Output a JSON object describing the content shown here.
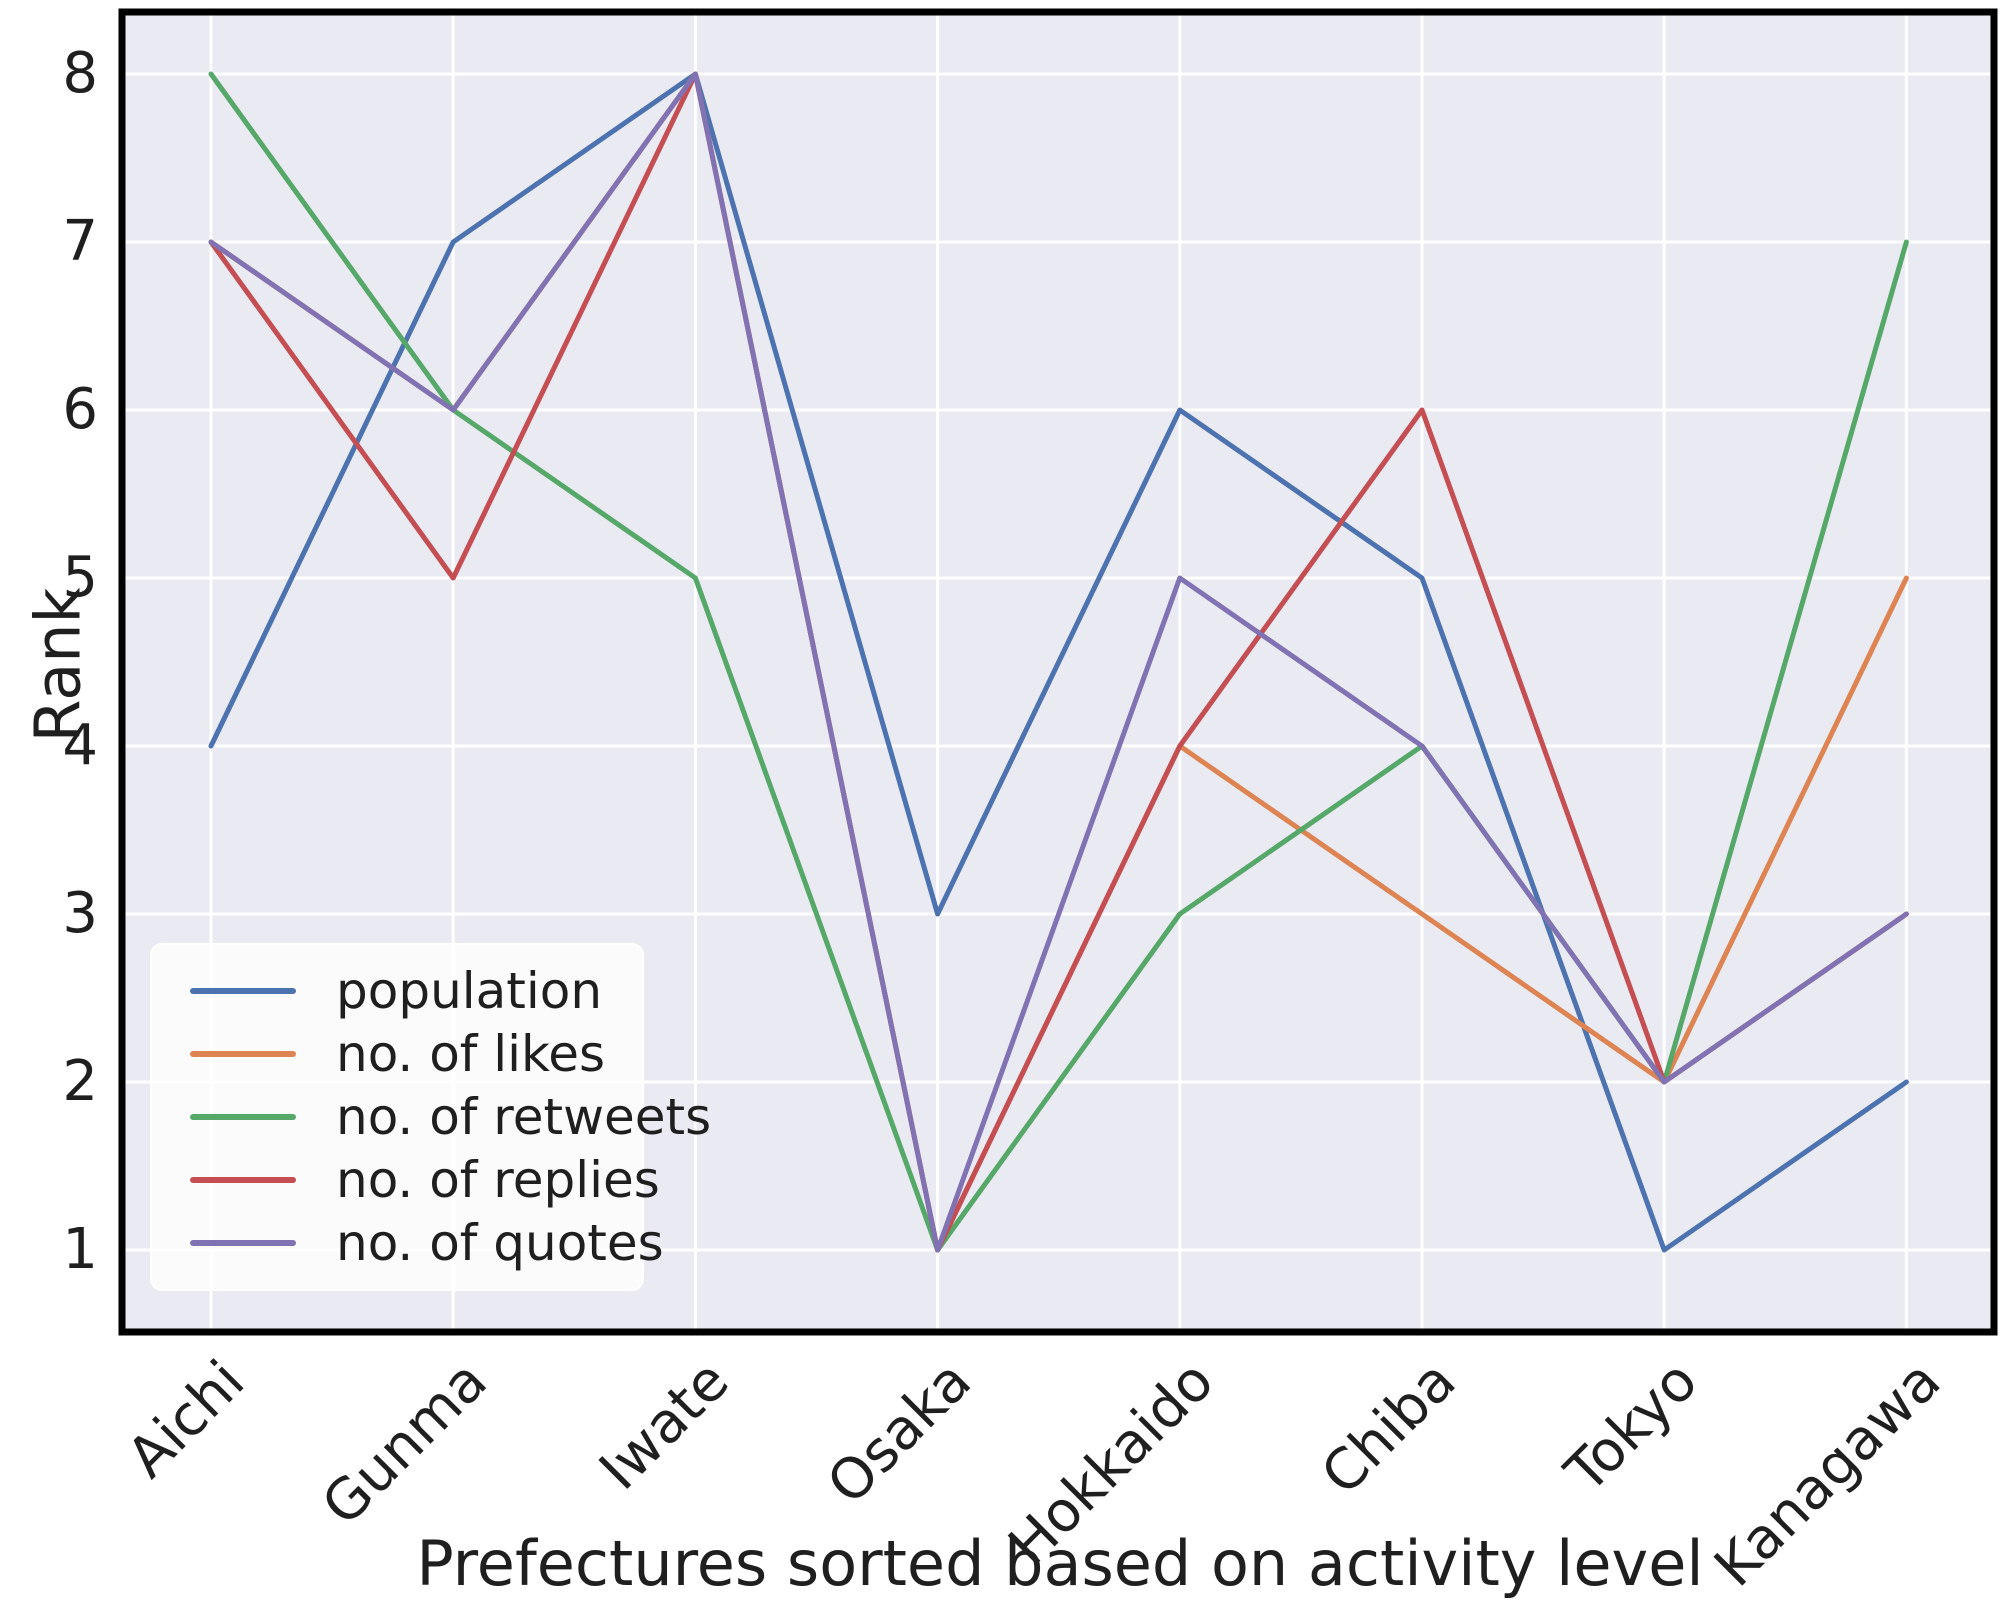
{
  "figure": {
    "background": "#ffffff"
  },
  "chart_data": {
    "type": "line",
    "title": "",
    "xlabel": "Prefectures sorted based on activity level",
    "ylabel": "Rank",
    "categories": [
      "Aichi",
      "Gunma",
      "Iwate",
      "Osaka",
      "Hokkaido",
      "Chiba",
      "Tokyo",
      "Kanagawa"
    ],
    "series": [
      {
        "name": "population",
        "color": "#4c72b0",
        "values": [
          4,
          7,
          8,
          3,
          6,
          5,
          1,
          2
        ]
      },
      {
        "name": "no. of likes",
        "color": "#dd8452",
        "values": [
          7,
          6,
          8,
          1,
          4,
          3,
          2,
          5
        ]
      },
      {
        "name": "no. of retweets",
        "color": "#55a868",
        "values": [
          8,
          6,
          5,
          1,
          3,
          4,
          2,
          7
        ]
      },
      {
        "name": "no. of replies",
        "color": "#c44e52",
        "values": [
          7,
          5,
          8,
          1,
          4,
          6,
          2,
          3
        ]
      },
      {
        "name": "no. of quotes",
        "color": "#8172b3",
        "values": [
          7,
          6,
          8,
          1,
          5,
          4,
          2,
          3
        ]
      }
    ],
    "y_ticks": [
      1,
      2,
      3,
      4,
      5,
      6,
      7,
      8
    ],
    "ylim": [
      0.65,
      8.35
    ],
    "grid": true,
    "legend_position": "lower left",
    "plot_background": "#eaeaf2",
    "grid_color": "#ffffff",
    "border_color": "#000000"
  }
}
